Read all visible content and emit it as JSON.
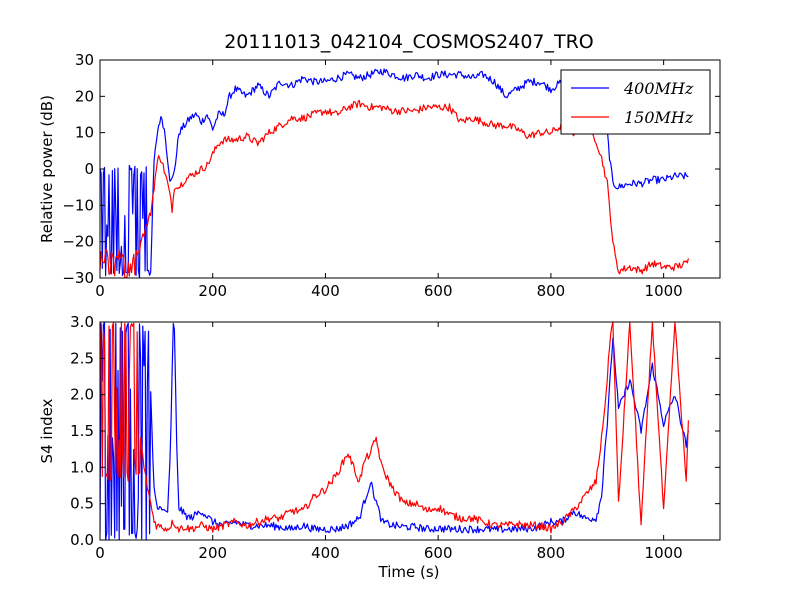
{
  "chart_data": {
    "title": "20111013_042104_COSMOS2407_TRO",
    "xlabel": "Time (s)",
    "colors": {
      "s400": "#0000ff",
      "s150": "#ff0000"
    },
    "panels": [
      {
        "id": "power",
        "type": "line",
        "ylabel": "Relative power (dB)",
        "xlim": [
          0,
          1100
        ],
        "ylim": [
          -30,
          30
        ],
        "xticks": [
          0,
          200,
          400,
          600,
          800,
          1000
        ],
        "yticks": [
          -30,
          -20,
          -10,
          0,
          10,
          20,
          30
        ],
        "ytick_labels": [
          "−30",
          "−20",
          "−10",
          "0",
          "10",
          "20",
          "30"
        ],
        "legend_position": "top-right",
        "series": [
          {
            "name": "400MHz",
            "legend_label": "400MHz",
            "color": "#0000ff",
            "x": [
              0,
              10,
              20,
              30,
              40,
              50,
              60,
              70,
              80,
              90,
              95,
              100,
              105,
              110,
              115,
              120,
              125,
              130,
              135,
              140,
              150,
              160,
              170,
              180,
              190,
              200,
              210,
              220,
              230,
              240,
              260,
              280,
              300,
              320,
              340,
              360,
              380,
              400,
              420,
              440,
              460,
              480,
              500,
              520,
              540,
              560,
              580,
              600,
              620,
              640,
              660,
              680,
              700,
              720,
              740,
              760,
              780,
              800,
              820,
              840,
              860,
              870,
              880,
              890,
              895,
              900,
              905,
              910,
              920,
              940,
              960,
              980,
              1000,
              1020,
              1040,
              1045
            ],
            "y": [
              -28,
              0,
              -30,
              1,
              -29,
              0,
              -30,
              2,
              -27,
              -30,
              0,
              8,
              13,
              14,
              10,
              3,
              -4,
              -2,
              3,
              10,
              12,
              14,
              15,
              13,
              15,
              11,
              15,
              15,
              20,
              22,
              20,
              23,
              20,
              24,
              23,
              25,
              24,
              24,
              25,
              26,
              25,
              26,
              27,
              26,
              25,
              26,
              25,
              26,
              26,
              26,
              25,
              26,
              24,
              20,
              22,
              24,
              24,
              22,
              24,
              23,
              20,
              22,
              19,
              17,
              14,
              10,
              2,
              -4,
              -5,
              -4,
              -4,
              -3,
              -3,
              -2,
              -2,
              -2
            ],
            "noise_min_x": 0,
            "noise_max_x": 90,
            "noise_low": -30,
            "noise_high": 1
          },
          {
            "name": "150MHz",
            "legend_label": "150MHz",
            "color": "#ff0000",
            "x": [
              0,
              10,
              20,
              30,
              40,
              50,
              60,
              70,
              80,
              90,
              95,
              100,
              105,
              110,
              115,
              120,
              125,
              128,
              130,
              135,
              140,
              150,
              160,
              170,
              180,
              190,
              200,
              210,
              220,
              240,
              260,
              280,
              300,
              320,
              340,
              360,
              380,
              400,
              420,
              440,
              460,
              480,
              500,
              520,
              540,
              560,
              580,
              600,
              620,
              640,
              660,
              680,
              700,
              720,
              740,
              760,
              780,
              800,
              820,
              840,
              860,
              870,
              880,
              890,
              900,
              905,
              910,
              915,
              920,
              940,
              960,
              980,
              1000,
              1020,
              1040,
              1045
            ],
            "y": [
              -27,
              -25,
              -28,
              -26,
              -27,
              -25,
              -23,
              -20,
              -17,
              -12,
              -6,
              0,
              4,
              2,
              -1,
              -4,
              -8,
              -12,
              -7,
              -4,
              -5,
              -3,
              -2,
              -1,
              0,
              1,
              4,
              7,
              8,
              8,
              9,
              7,
              10,
              12,
              14,
              14,
              15,
              16,
              15,
              17,
              18,
              17,
              17,
              16,
              16,
              16,
              17,
              17,
              17,
              13,
              14,
              13,
              12,
              12,
              11,
              9,
              10,
              10,
              12,
              10,
              12,
              10,
              8,
              3,
              -4,
              -12,
              -20,
              -25,
              -28,
              -27,
              -28,
              -26,
              -27,
              -27,
              -26,
              -25
            ],
            "noise_min_x": 0,
            "noise_max_x": 70,
            "noise_low": -30,
            "noise_high": -22
          }
        ]
      },
      {
        "id": "s4",
        "type": "line",
        "ylabel": "S4 index",
        "xlim": [
          0,
          1100
        ],
        "ylim": [
          0,
          3
        ],
        "xticks": [
          0,
          200,
          400,
          600,
          800,
          1000
        ],
        "yticks": [
          0,
          0.5,
          1,
          1.5,
          2,
          2.5,
          3
        ],
        "ytick_labels": [
          "0.0",
          "0.5",
          "1.0",
          "1.5",
          "2.0",
          "2.5",
          "3.0"
        ],
        "series": [
          {
            "name": "400MHz",
            "color": "#0000ff",
            "x": [
              0,
              10,
              20,
              30,
              40,
              50,
              60,
              70,
              80,
              90,
              95,
              100,
              110,
              120,
              125,
              130,
              133,
              135,
              140,
              150,
              160,
              180,
              200,
              220,
              240,
              260,
              280,
              300,
              320,
              340,
              360,
              380,
              400,
              420,
              440,
              460,
              480,
              500,
              520,
              540,
              560,
              580,
              600,
              620,
              640,
              660,
              680,
              700,
              720,
              740,
              760,
              780,
              800,
              820,
              840,
              860,
              880,
              890,
              895,
              900,
              910,
              920,
              940,
              960,
              980,
              1000,
              1020,
              1040,
              1045
            ],
            "y": [
              2.5,
              3,
              0.5,
              3,
              0.2,
              2.8,
              0.1,
              3,
              0.3,
              2,
              0.8,
              0.5,
              0.4,
              0.4,
              1.2,
              3,
              2.8,
              1.5,
              0.45,
              0.35,
              0.3,
              0.4,
              0.25,
              0.2,
              0.25,
              0.2,
              0.2,
              0.2,
              0.18,
              0.15,
              0.2,
              0.15,
              0.15,
              0.15,
              0.2,
              0.3,
              0.8,
              0.25,
              0.2,
              0.18,
              0.18,
              0.15,
              0.16,
              0.15,
              0.15,
              0.15,
              0.15,
              0.14,
              0.15,
              0.15,
              0.16,
              0.18,
              0.25,
              0.25,
              0.4,
              0.3,
              0.3,
              0.6,
              1.2,
              1.6,
              2.8,
              1.8,
              2.2,
              1.5,
              2.4,
              1.6,
              2,
              1.3,
              1.5
            ],
            "noise_min_x": 0,
            "noise_max_x": 88,
            "noise_low": 0,
            "noise_high": 3
          },
          {
            "name": "150MHz",
            "color": "#ff0000",
            "x": [
              0,
              10,
              20,
              30,
              40,
              50,
              60,
              70,
              80,
              90,
              95,
              100,
              110,
              120,
              130,
              140,
              150,
              160,
              180,
              200,
              220,
              240,
              260,
              280,
              300,
              320,
              340,
              360,
              380,
              400,
              420,
              440,
              450,
              460,
              470,
              480,
              490,
              500,
              520,
              540,
              560,
              580,
              600,
              620,
              640,
              660,
              680,
              700,
              720,
              740,
              760,
              780,
              800,
              820,
              840,
              860,
              880,
              890,
              900,
              905,
              910,
              920,
              940,
              960,
              980,
              1000,
              1020,
              1040,
              1045
            ],
            "y": [
              2,
              2.8,
              2.5,
              3,
              1.8,
              3,
              2.2,
              1.5,
              0.9,
              0.5,
              0.3,
              0.2,
              0.18,
              0.15,
              0.25,
              0.15,
              0.18,
              0.15,
              0.2,
              0.15,
              0.2,
              0.25,
              0.2,
              0.25,
              0.3,
              0.3,
              0.4,
              0.4,
              0.6,
              0.7,
              0.9,
              1.2,
              1.0,
              0.8,
              1.1,
              1.2,
              1.4,
              1.0,
              0.7,
              0.5,
              0.5,
              0.4,
              0.45,
              0.35,
              0.3,
              0.3,
              0.25,
              0.2,
              0.2,
              0.22,
              0.2,
              0.2,
              0.15,
              0.25,
              0.4,
              0.6,
              0.8,
              1.4,
              2.2,
              2.8,
              3,
              0.5,
              3,
              0.2,
              3,
              0.4,
              3,
              0.8,
              1.8
            ],
            "noise_min_x": 0,
            "noise_max_x": 70,
            "noise_low": 0.8,
            "noise_high": 3
          }
        ]
      }
    ]
  }
}
